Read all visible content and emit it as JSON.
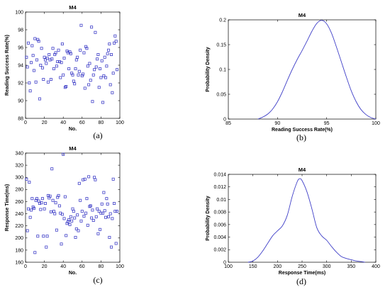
{
  "colors": {
    "series": "#4040c8",
    "axis": "#000000"
  },
  "chart_data": [
    {
      "type": "scatter",
      "panel": "a",
      "caption": "(a)",
      "title": "M4",
      "xlabel": "No.",
      "ylabel": "Reading Success Rate(%)",
      "xlim": [
        0,
        100
      ],
      "ylim": [
        88,
        100
      ],
      "xticks": [
        "0",
        "20",
        "40",
        "60",
        "80",
        "100"
      ],
      "yticks": [
        "88",
        "90",
        "92",
        "94",
        "96",
        "98",
        "100"
      ],
      "marker": "square",
      "grid": false,
      "x": [
        1,
        2,
        3,
        4,
        5,
        6,
        7,
        8,
        9,
        10,
        11,
        12,
        13,
        14,
        15,
        16,
        17,
        18,
        19,
        20,
        21,
        22,
        23,
        24,
        25,
        26,
        27,
        28,
        29,
        30,
        31,
        32,
        33,
        34,
        35,
        36,
        37,
        38,
        39,
        40,
        41,
        42,
        43,
        44,
        45,
        46,
        47,
        48,
        49,
        50,
        51,
        52,
        53,
        54,
        55,
        56,
        57,
        58,
        59,
        60,
        61,
        62,
        63,
        64,
        65,
        66,
        67,
        68,
        69,
        70,
        71,
        72,
        73,
        74,
        75,
        76,
        77,
        78,
        79,
        80,
        81,
        82,
        83,
        84,
        85,
        86,
        87,
        88,
        89,
        90,
        91,
        92,
        93,
        94,
        95,
        96,
        97
      ],
      "y": [
        94.9,
        93.8,
        96.5,
        92.0,
        91.1,
        94.3,
        96.2,
        95.1,
        93.4,
        97.0,
        92.1,
        94.6,
        96.9,
        96.7,
        90.2,
        94.0,
        95.9,
        93.7,
        92.4,
        94.9,
        94.6,
        94.2,
        94.8,
        92.1,
        95.2,
        94.6,
        92.4,
        94.7,
        95.9,
        93.6,
        95.2,
        95.4,
        93.9,
        94.4,
        95.7,
        94.4,
        92.6,
        94.3,
        96.4,
        92.9,
        94.8,
        91.5,
        91.6,
        95.6,
        95.4,
        93.6,
        95.5,
        95.3,
        93.1,
        92.9,
        92.2,
        91.9,
        93.6,
        94.6,
        94.9,
        92.9,
        93.3,
        95.7,
        98.5,
        92.8,
        93.0,
        95.4,
        91.4,
        96.1,
        95.9,
        93.9,
        91.8,
        94.2,
        92.3,
        98.3,
        89.9,
        92.9,
        93.5,
        97.7,
        93.8,
        94.7,
        95.2,
        91.5,
        93.6,
        92.6,
        94.5,
        89.8,
        92.8,
        94.9,
        92.6,
        93.9,
        95.3,
        95.7,
        96.4,
        91.8,
        95.2,
        90.9,
        93.1,
        96.5,
        97.3,
        96.7,
        93.5
      ]
    },
    {
      "type": "line",
      "panel": "b",
      "caption": "(b)",
      "title": "M4",
      "xlabel": "Reading Success Rate(%)",
      "ylabel": "Probability Density",
      "xlim": [
        85,
        100
      ],
      "ylim": [
        0,
        0.2
      ],
      "xticks": [
        "85",
        "90",
        "95",
        "100"
      ],
      "yticks": [
        "0",
        "0.05",
        "0.1",
        "0.15",
        "0.2"
      ],
      "grid": false,
      "x": [
        88.0,
        88.5,
        89.0,
        89.5,
        90.0,
        90.5,
        91.0,
        91.5,
        92.0,
        92.5,
        93.0,
        93.5,
        94.0,
        94.5,
        95.0,
        95.5,
        96.0,
        96.5,
        97.0,
        97.5,
        98.0,
        98.5,
        99.0,
        99.5,
        100.0
      ],
      "y": [
        0.0,
        0.004,
        0.01,
        0.02,
        0.035,
        0.055,
        0.078,
        0.1,
        0.12,
        0.138,
        0.157,
        0.177,
        0.193,
        0.199,
        0.192,
        0.173,
        0.145,
        0.115,
        0.085,
        0.057,
        0.035,
        0.019,
        0.009,
        0.003,
        0.0
      ]
    },
    {
      "type": "scatter",
      "panel": "c",
      "caption": "(c)",
      "title": "M4",
      "xlabel": "No.",
      "ylabel": "Response Time(ms)",
      "xlim": [
        0,
        100
      ],
      "ylim": [
        160,
        340
      ],
      "xticks": [
        "0",
        "20",
        "40",
        "60",
        "80",
        "100"
      ],
      "yticks": [
        "160",
        "180",
        "200",
        "220",
        "240",
        "260",
        "280",
        "300",
        "320",
        "340"
      ],
      "marker": "square",
      "grid": false,
      "x": [
        1,
        2,
        3,
        4,
        5,
        6,
        7,
        8,
        9,
        10,
        11,
        12,
        13,
        14,
        15,
        16,
        17,
        18,
        19,
        20,
        21,
        22,
        23,
        24,
        25,
        26,
        27,
        28,
        29,
        30,
        31,
        32,
        33,
        34,
        35,
        36,
        37,
        38,
        39,
        40,
        41,
        42,
        43,
        44,
        45,
        46,
        47,
        48,
        49,
        50,
        51,
        52,
        53,
        54,
        55,
        56,
        57,
        58,
        59,
        60,
        61,
        62,
        63,
        64,
        65,
        66,
        67,
        68,
        69,
        70,
        71,
        72,
        73,
        74,
        75,
        76,
        77,
        78,
        79,
        80,
        81,
        82,
        83,
        84,
        85,
        86,
        87,
        88,
        89,
        90,
        91,
        92,
        93,
        94,
        95,
        96,
        97
      ],
      "y": [
        297,
        212,
        248,
        292,
        234,
        246,
        265,
        251,
        249,
        176,
        262,
        265,
        203,
        261,
        257,
        247,
        258,
        265,
        203,
        248,
        257,
        185,
        203,
        270,
        266,
        269,
        243,
        314,
        262,
        244,
        240,
        258,
        213,
        267,
        270,
        253,
        241,
        190,
        239,
        338,
        232,
        268,
        204,
        224,
        227,
        230,
        222,
        235,
        228,
        248,
        244,
        233,
        201,
        215,
        238,
        212,
        290,
        262,
        228,
        244,
        296,
        236,
        297,
        241,
        265,
        221,
        301,
        252,
        253,
        233,
        246,
        229,
        300,
        296,
        235,
        248,
        207,
        244,
        214,
        241,
        256,
        241,
        275,
        245,
        234,
        265,
        256,
        235,
        201,
        240,
        185,
        232,
        297,
        257,
        244,
        191,
        244
      ]
    },
    {
      "type": "line",
      "panel": "d",
      "caption": "(d)",
      "title": "M4",
      "xlabel": "Response Time(ms)",
      "ylabel": "Probability Density",
      "xlim": [
        100,
        400
      ],
      "ylim": [
        0,
        0.014
      ],
      "xticks": [
        "100",
        "150",
        "200",
        "250",
        "300",
        "350",
        "400"
      ],
      "yticks": [
        "0",
        "0.002",
        "0.004",
        "0.006",
        "0.008",
        "0.01",
        "0.012",
        "0.014"
      ],
      "grid": false,
      "x": [
        140,
        150,
        160,
        170,
        180,
        190,
        200,
        210,
        220,
        230,
        240,
        245,
        250,
        260,
        270,
        280,
        290,
        300,
        310,
        320,
        330,
        340,
        350,
        360,
        370,
        378
      ],
      "y": [
        0.0,
        0.0002,
        0.0008,
        0.0018,
        0.003,
        0.0042,
        0.005,
        0.0058,
        0.0075,
        0.0105,
        0.0128,
        0.0133,
        0.013,
        0.0112,
        0.0085,
        0.0055,
        0.0042,
        0.0035,
        0.0025,
        0.0016,
        0.0009,
        0.0006,
        0.0004,
        0.0002,
        0.0001,
        0.0
      ]
    }
  ]
}
